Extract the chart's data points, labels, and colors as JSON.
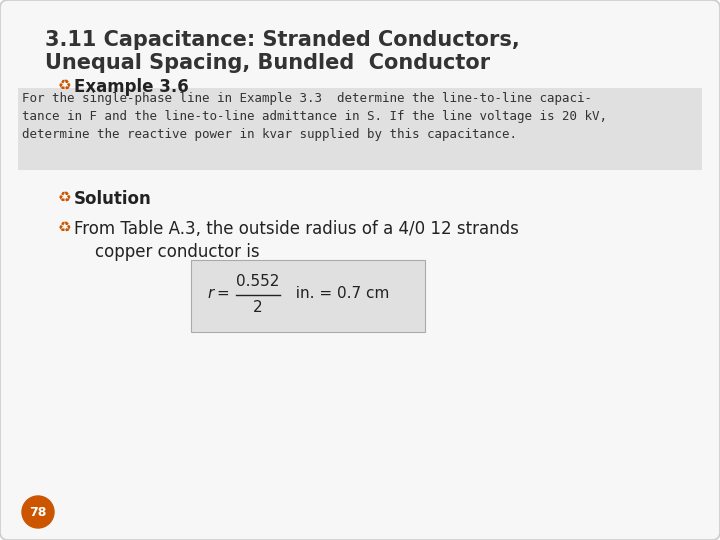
{
  "title_line1": "3.11 Capacitance: Stranded Conductors,",
  "title_line2": "Unequal Spacing, Bundled  Conductor",
  "example_label": "Example 3.6",
  "example_text_line1": "For the single-phase line in Example 3.3  determine the line-to-line capaci-",
  "example_text_line2": "tance in F and the line-to-line admittance in S. If the line voltage is 20 kV,",
  "example_text_line3": "determine the reactive power in kvar supplied by this capacitance.",
  "solution_label": "Solution",
  "from_text_line1": "From Table A.3, the outside radius of a 4/0 12 strands",
  "from_text_line2": "copper conductor is",
  "formula_numerator": "0.552",
  "formula_denominator": "2",
  "formula_rest": "in. = 0.7 cm",
  "page_number": "78",
  "bg_color": "#ffffff",
  "slide_bg": "#f7f7f7",
  "title_color": "#333333",
  "body_color": "#222222",
  "example_box_color": "#e0e0e0",
  "formula_box_color": "#e0e0e0",
  "bullet_color": "#cc5500",
  "page_circle_color": "#cc5500",
  "page_text_color": "#ffffff",
  "title_fontsize": 15,
  "example_label_fontsize": 12,
  "body_text_fontsize": 9,
  "solution_fontsize": 12,
  "from_text_fontsize": 12,
  "formula_fontsize": 11,
  "page_fontsize": 9
}
